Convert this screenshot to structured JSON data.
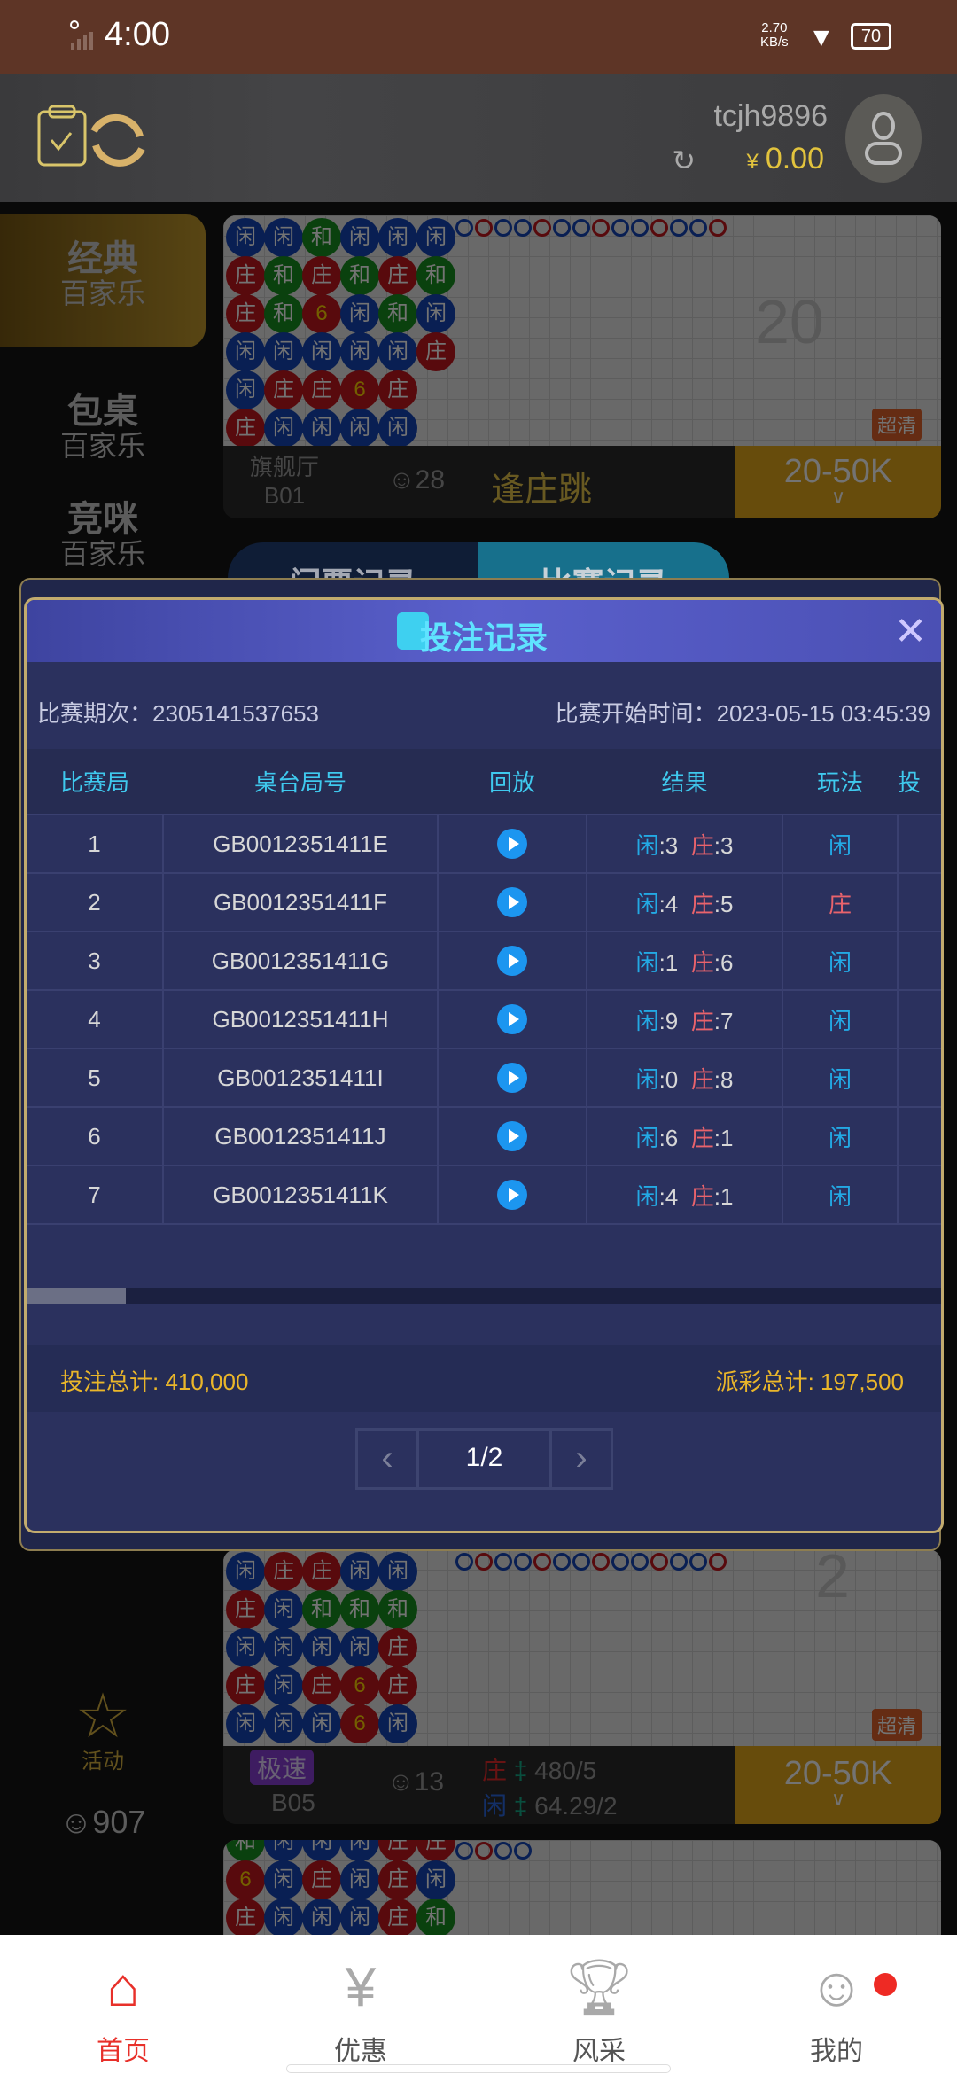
{
  "status_bar": {
    "time": "4:00",
    "net_speed": "2.70",
    "net_unit": "KB/s",
    "battery": "70"
  },
  "header": {
    "username": "tcjh9896",
    "currency": "¥",
    "balance": "0.00"
  },
  "sidebar": {
    "items": [
      {
        "line1": "经典",
        "line2": "百家乐",
        "active": true
      },
      {
        "line1": "包桌",
        "line2": "百家乐"
      },
      {
        "line1": "竞咪",
        "line2": "百家乐"
      }
    ],
    "activity_label": "活动",
    "online_count": "907"
  },
  "cards": [
    {
      "hall": "旗舰厅",
      "table": "B01",
      "players": "28",
      "trend": "逢庄跳",
      "shoe_count": "20",
      "quality": "超清",
      "limit": "20-50K",
      "beads": [
        [
          "闲",
          "闲",
          "和",
          "闲",
          "闲",
          "闲"
        ],
        [
          "庄",
          "和",
          "庄",
          "和",
          "庄",
          "和"
        ],
        [
          "庄",
          "和",
          "6",
          "闲",
          "和",
          "闲"
        ],
        [
          "闲",
          "闲",
          "闲",
          "闲",
          "闲",
          "庄"
        ],
        [
          "闲",
          "庄",
          "庄",
          "6",
          "庄"
        ],
        [
          "庄",
          "闲",
          "闲",
          "闲",
          "闲"
        ]
      ]
    },
    {
      "badge": "极速",
      "table": "B05",
      "players": "13",
      "banker_label": "庄",
      "banker_odds": "480/5",
      "player_label": "闲",
      "player_odds": "64.29/2",
      "shoe_count": "2",
      "quality": "超清",
      "limit": "20-50K",
      "beads": [
        [
          "闲",
          "庄",
          "庄",
          "闲",
          "闲"
        ],
        [
          "庄",
          "闲",
          "和",
          "和",
          "和"
        ],
        [
          "闲",
          "闲",
          "闲",
          "闲",
          "庄"
        ],
        [
          "庄",
          "闲",
          "庄",
          "6",
          "庄"
        ],
        [
          "闲",
          "闲",
          "闲",
          "6",
          "闲"
        ]
      ]
    },
    {
      "beads": [
        [
          "和",
          "闲",
          "闲",
          "闲",
          "庄",
          "庄"
        ],
        [
          "6",
          "闲",
          "庄",
          "闲",
          "庄",
          "闲"
        ],
        [
          "庄",
          "闲",
          "闲",
          "闲",
          "庄",
          "和"
        ]
      ]
    }
  ],
  "modal_tabs": [
    "门票记录",
    "比赛记录"
  ],
  "modal": {
    "title": "投注记录",
    "period_label": "比赛期次：",
    "period": "2305141537653",
    "start_label": "比赛开始时间：",
    "start_time": "2023-05-15 03:45:39",
    "columns": [
      "比赛局",
      "桌台局号",
      "回放",
      "结果",
      "玩法",
      "投"
    ],
    "rows": [
      {
        "round": "1",
        "table_no": "GB0012351411E",
        "player": "3",
        "banker": "3",
        "bet": "闲"
      },
      {
        "round": "2",
        "table_no": "GB0012351411F",
        "player": "4",
        "banker": "5",
        "bet": "庄"
      },
      {
        "round": "3",
        "table_no": "GB0012351411G",
        "player": "1",
        "banker": "6",
        "bet": "闲"
      },
      {
        "round": "4",
        "table_no": "GB0012351411H",
        "player": "9",
        "banker": "7",
        "bet": "闲"
      },
      {
        "round": "5",
        "table_no": "GB0012351411I",
        "player": "0",
        "banker": "8",
        "bet": "闲"
      },
      {
        "round": "6",
        "table_no": "GB0012351411J",
        "player": "6",
        "banker": "1",
        "bet": "闲"
      },
      {
        "round": "7",
        "table_no": "GB0012351411K",
        "player": "4",
        "banker": "1",
        "bet": "闲"
      }
    ],
    "player_label": "闲",
    "banker_label": "庄",
    "bet_total_label": "投注总计: ",
    "bet_total": "410,000",
    "payout_total_label": "派彩总计: ",
    "payout_total": "197,500",
    "page": "1/2"
  },
  "nav": [
    {
      "label": "首页",
      "icon": "home-icon",
      "active": true
    },
    {
      "label": "优惠",
      "icon": "coupon-icon"
    },
    {
      "label": "风采",
      "icon": "trophy-icon"
    },
    {
      "label": "我的",
      "icon": "user-icon"
    }
  ],
  "colors": {
    "player": "#23a9e4",
    "banker": "#e9636c",
    "gold": "#eab62a",
    "title": "#5fe3ff",
    "nav_active": "#e8302a"
  }
}
